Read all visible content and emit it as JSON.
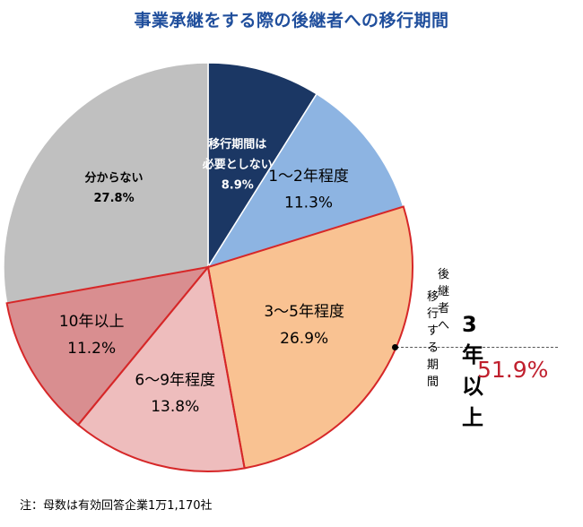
{
  "title": "事業承継をする際の後継者への移行期間",
  "chart_data": {
    "type": "pie",
    "title": "事業承継をする際の後継者への移行期間",
    "slices": [
      {
        "label_lines": [
          "移行期間は",
          "必要としない"
        ],
        "value": 8.9,
        "value_label": "8.9%",
        "color": "#1b3764",
        "text_color": "#ffffff"
      },
      {
        "label_lines": [
          "1～2年程度"
        ],
        "value": 11.3,
        "value_label": "11.3%",
        "color": "#8db4e2",
        "text_color": "#000000"
      },
      {
        "label_lines": [
          "3～5年程度"
        ],
        "value": 26.9,
        "value_label": "26.9%",
        "color": "#f9c292",
        "text_color": "#000000"
      },
      {
        "label_lines": [
          "6～9年程度"
        ],
        "value": 13.8,
        "value_label": "13.8%",
        "color": "#eebdbd",
        "text_color": "#000000"
      },
      {
        "label_lines": [
          "10年以上"
        ],
        "value": 11.2,
        "value_label": "11.2%",
        "color": "#d98e90",
        "text_color": "#000000"
      },
      {
        "label_lines": [
          "分からない"
        ],
        "value": 27.8,
        "value_label": "27.8%",
        "color": "#c0c0c0",
        "text_color": "#000000"
      }
    ],
    "highlight": {
      "slices": [
        2,
        3,
        4
      ],
      "outline_color": "#d62728"
    }
  },
  "callout": {
    "line1": "後継者へ",
    "line2": "移行する期間",
    "big": "3年以上",
    "percent": "51.9%"
  },
  "note": "注：母数は有効回答企業1万1,170社"
}
